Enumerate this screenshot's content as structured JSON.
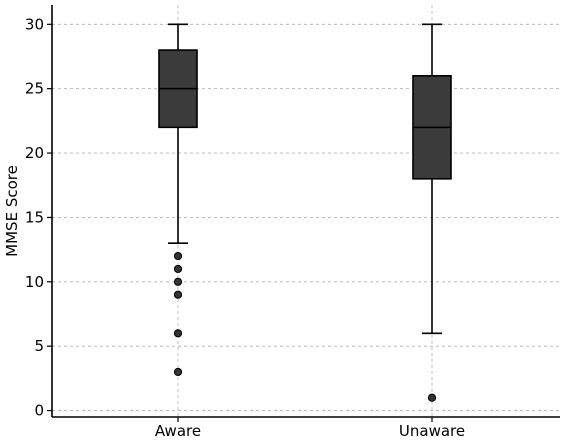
{
  "chart_data": {
    "type": "box",
    "title": "",
    "xlabel": "",
    "ylabel": "MMSE Score",
    "categories": [
      "Aware",
      "Unaware"
    ],
    "ylim": [
      -0.5,
      31.5
    ],
    "yticks": [
      0,
      5,
      10,
      15,
      20,
      25,
      30
    ],
    "grid": true,
    "boxes": [
      {
        "category": "Aware",
        "whisker_low": 13,
        "q1": 22,
        "median": 25,
        "q3": 28,
        "whisker_high": 30,
        "outliers": [
          12,
          11,
          10,
          9,
          6,
          3
        ]
      },
      {
        "category": "Unaware",
        "whisker_low": 6,
        "q1": 18,
        "median": 22,
        "q3": 26,
        "whisker_high": 30,
        "outliers": [
          1
        ]
      }
    ],
    "colors": {
      "box_fill": "#3b3b3b",
      "line": "#000000",
      "grid": "#b0b0b0",
      "outlier": "#333333"
    }
  }
}
